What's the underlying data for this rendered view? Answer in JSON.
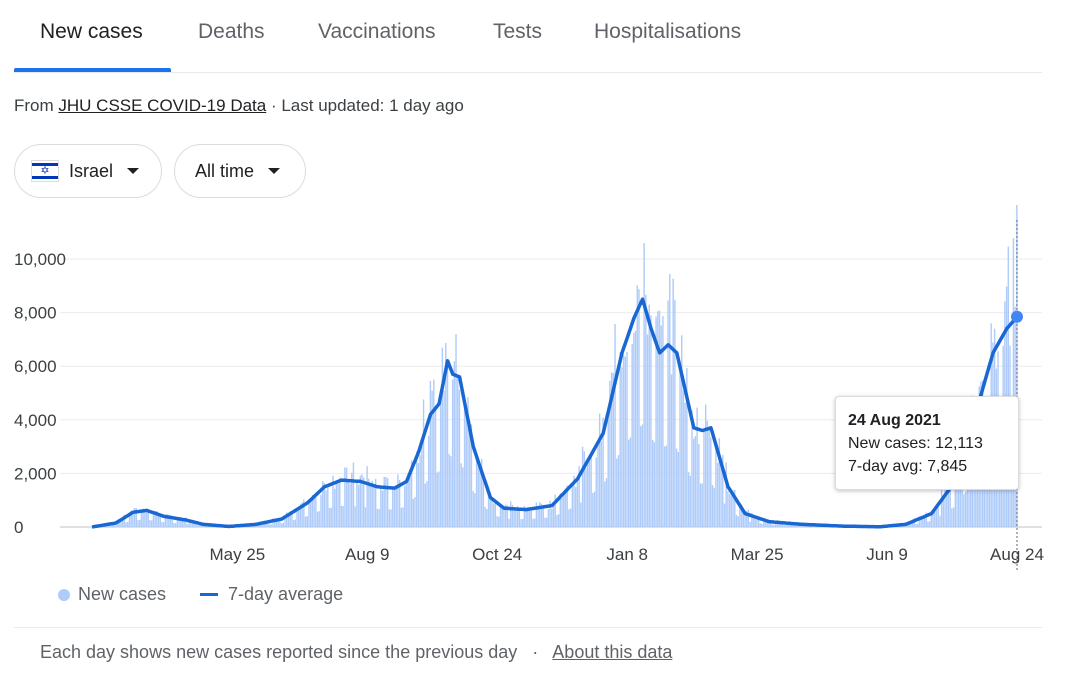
{
  "tabs": [
    {
      "label": "New cases",
      "active": true
    },
    {
      "label": "Deaths"
    },
    {
      "label": "Vaccinations"
    },
    {
      "label": "Tests"
    },
    {
      "label": "Hospitalisations"
    }
  ],
  "source": {
    "prefix": "From ",
    "link": "JHU CSSE COVID-19 Data",
    "suffix": " · Last updated: 1 day ago"
  },
  "filters": {
    "country": "Israel",
    "country_flag": "israel-flag-icon",
    "range": "All time"
  },
  "tooltip": {
    "date": "24 Aug 2021",
    "new_cases": "New cases: 12,113",
    "avg": "7-day avg: 7,845"
  },
  "legend": {
    "new_cases": "New cases",
    "avg": "7-day average"
  },
  "footer": {
    "text": "Each day shows new cases reported since the previous day",
    "sep": "·",
    "link": "About this data"
  },
  "colors": {
    "bars": "#aecbfa",
    "line": "#1967d2",
    "accent": "#1a73e8"
  },
  "chart_data": {
    "type": "bar",
    "yticks": [
      "10,000",
      "8,000",
      "6,000",
      "4,000",
      "2,000",
      "0"
    ],
    "ylim": [
      0,
      11500
    ],
    "xticks": [
      "May 25",
      "Aug 9",
      "Oct 24",
      "Jan 8",
      "Mar 25",
      "Jun 9",
      "Aug 24"
    ],
    "series": [
      {
        "name": "New cases",
        "type": "bar"
      },
      {
        "name": "7-day average",
        "type": "line"
      }
    ],
    "avg_points": [
      [
        "2020-03-01",
        0
      ],
      [
        "2020-03-15",
        150
      ],
      [
        "2020-03-25",
        550
      ],
      [
        "2020-04-02",
        620
      ],
      [
        "2020-04-12",
        400
      ],
      [
        "2020-04-25",
        260
      ],
      [
        "2020-05-05",
        100
      ],
      [
        "2020-05-20",
        20
      ],
      [
        "2020-06-05",
        100
      ],
      [
        "2020-06-20",
        300
      ],
      [
        "2020-07-05",
        900
      ],
      [
        "2020-07-15",
        1500
      ],
      [
        "2020-07-25",
        1750
      ],
      [
        "2020-08-05",
        1700
      ],
      [
        "2020-08-15",
        1500
      ],
      [
        "2020-08-25",
        1450
      ],
      [
        "2020-09-01",
        1700
      ],
      [
        "2020-09-08",
        2800
      ],
      [
        "2020-09-15",
        4200
      ],
      [
        "2020-09-20",
        4600
      ],
      [
        "2020-09-25",
        6200
      ],
      [
        "2020-09-28",
        5700
      ],
      [
        "2020-10-02",
        5600
      ],
      [
        "2020-10-10",
        3000
      ],
      [
        "2020-10-20",
        1100
      ],
      [
        "2020-10-28",
        700
      ],
      [
        "2020-11-10",
        650
      ],
      [
        "2020-11-25",
        800
      ],
      [
        "2020-12-10",
        1800
      ],
      [
        "2020-12-25",
        3500
      ],
      [
        "2021-01-05",
        6500
      ],
      [
        "2021-01-12",
        7800
      ],
      [
        "2021-01-17",
        8500
      ],
      [
        "2021-01-22",
        7400
      ],
      [
        "2021-01-27",
        6500
      ],
      [
        "2021-02-01",
        6800
      ],
      [
        "2021-02-06",
        6500
      ],
      [
        "2021-02-16",
        3700
      ],
      [
        "2021-02-21",
        3600
      ],
      [
        "2021-02-26",
        3700
      ],
      [
        "2021-03-08",
        1500
      ],
      [
        "2021-03-18",
        500
      ],
      [
        "2021-04-01",
        200
      ],
      [
        "2021-04-20",
        100
      ],
      [
        "2021-05-15",
        30
      ],
      [
        "2021-06-05",
        10
      ],
      [
        "2021-06-20",
        100
      ],
      [
        "2021-07-05",
        500
      ],
      [
        "2021-07-20",
        1800
      ],
      [
        "2021-08-01",
        4500
      ],
      [
        "2021-08-10",
        6500
      ],
      [
        "2021-08-18",
        7400
      ],
      [
        "2021-08-24",
        7845
      ]
    ],
    "highlight": {
      "date": "2021-08-24",
      "new_cases": 12113,
      "avg": 7845
    }
  }
}
